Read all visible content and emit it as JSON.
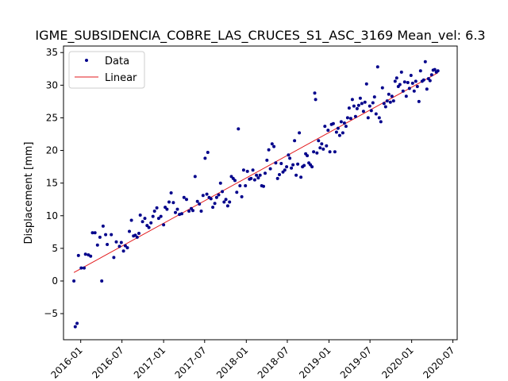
{
  "chart_data": {
    "type": "scatter",
    "title": "IGME_SUBSIDENCIA_COBRE_LAS_CRUCES_S1_ASC_3169     Mean_vel: 6.3",
    "xlabel": "",
    "ylabel": "Displacement [mm]",
    "xlim": [
      "2015-10-17",
      "2020-07-20"
    ],
    "ylim": [
      -9,
      36
    ],
    "x_ticks": [
      "2016-01",
      "2016-07",
      "2017-01",
      "2017-07",
      "2018-01",
      "2018-07",
      "2019-01",
      "2019-07",
      "2020-01",
      "2020-07"
    ],
    "y_ticks": [
      -5,
      0,
      5,
      10,
      15,
      20,
      25,
      30,
      35
    ],
    "grid": false,
    "legend_position": "upper-left",
    "colors": {
      "data": "#00008b",
      "linear": "#e31a1c"
    },
    "series": [
      {
        "name": "Data",
        "style": "markers",
        "points": [
          [
            "2015-12-02",
            0
          ],
          [
            "2015-12-08",
            -7
          ],
          [
            "2015-12-16",
            -6.5
          ],
          [
            "2015-12-22",
            3.9
          ],
          [
            "2016-01-03",
            2
          ],
          [
            "2016-01-16",
            2
          ],
          [
            "2016-01-22",
            4.1
          ],
          [
            "2016-02-04",
            4
          ],
          [
            "2016-02-14",
            3.8
          ],
          [
            "2016-02-22",
            7.4
          ],
          [
            "2016-03-04",
            7.4
          ],
          [
            "2016-03-15",
            5.5
          ],
          [
            "2016-03-26",
            6.7
          ],
          [
            "2016-04-03",
            0
          ],
          [
            "2016-04-09",
            8.4
          ],
          [
            "2016-04-20",
            7.1
          ],
          [
            "2016-04-27",
            5.6
          ],
          [
            "2016-05-15",
            7.1
          ],
          [
            "2016-05-26",
            3.6
          ],
          [
            "2016-06-06",
            6
          ],
          [
            "2016-06-20",
            5.3
          ],
          [
            "2016-06-28",
            5.9
          ],
          [
            "2016-07-08",
            4.6
          ],
          [
            "2016-07-16",
            5.4
          ],
          [
            "2016-07-25",
            5.1
          ],
          [
            "2016-08-03",
            7.6
          ],
          [
            "2016-08-12",
            9.3
          ],
          [
            "2016-08-21",
            6.9
          ],
          [
            "2016-08-29",
            7
          ],
          [
            "2016-09-06",
            6.7
          ],
          [
            "2016-09-14",
            7.3
          ],
          [
            "2016-09-20",
            10.1
          ],
          [
            "2016-09-30",
            9.1
          ],
          [
            "2016-10-10",
            9.6
          ],
          [
            "2016-10-20",
            8.5
          ],
          [
            "2016-10-28",
            8.2
          ],
          [
            "2016-11-06",
            8.9
          ],
          [
            "2016-11-15",
            9.9
          ],
          [
            "2016-11-22",
            10.7
          ],
          [
            "2016-12-02",
            11.2
          ],
          [
            "2016-12-10",
            9.6
          ],
          [
            "2016-12-20",
            9.9
          ],
          [
            "2017-01-01",
            8.6
          ],
          [
            "2017-01-08",
            11.3
          ],
          [
            "2017-01-16",
            11
          ],
          [
            "2017-01-25",
            12.1
          ],
          [
            "2017-02-03",
            13.5
          ],
          [
            "2017-02-13",
            12
          ],
          [
            "2017-02-22",
            10.5
          ],
          [
            "2017-03-03",
            11
          ],
          [
            "2017-03-12",
            10.2
          ],
          [
            "2017-03-22",
            10.3
          ],
          [
            "2017-04-01",
            12.8
          ],
          [
            "2017-04-12",
            12.5
          ],
          [
            "2017-04-23",
            10.7
          ],
          [
            "2017-05-03",
            11.1
          ],
          [
            "2017-05-10",
            10.8
          ],
          [
            "2017-05-20",
            16
          ],
          [
            "2017-05-30",
            12.2
          ],
          [
            "2017-06-08",
            11.8
          ],
          [
            "2017-06-16",
            10.7
          ],
          [
            "2017-06-24",
            13.1
          ],
          [
            "2017-07-03",
            18.8
          ],
          [
            "2017-07-11",
            13.3
          ],
          [
            "2017-07-15",
            19.7
          ],
          [
            "2017-07-21",
            12.8
          ],
          [
            "2017-07-29",
            12.6
          ],
          [
            "2017-08-06",
            11.3
          ],
          [
            "2017-08-15",
            11.9
          ],
          [
            "2017-08-23",
            12.8
          ],
          [
            "2017-09-01",
            13.2
          ],
          [
            "2017-09-09",
            15
          ],
          [
            "2017-09-17",
            13.7
          ],
          [
            "2017-09-25",
            12.1
          ],
          [
            "2017-10-03",
            12.5
          ],
          [
            "2017-10-11",
            11.5
          ],
          [
            "2017-10-19",
            12.1
          ],
          [
            "2017-10-27",
            16
          ],
          [
            "2017-11-04",
            15.7
          ],
          [
            "2017-11-12",
            15.4
          ],
          [
            "2017-11-20",
            13.6
          ],
          [
            "2017-11-27",
            23.3
          ],
          [
            "2017-12-04",
            14.6
          ],
          [
            "2017-12-12",
            12.9
          ],
          [
            "2017-12-20",
            17
          ],
          [
            "2017-12-28",
            14.6
          ],
          [
            "2018-01-06",
            16.8
          ],
          [
            "2018-01-15",
            15.6
          ],
          [
            "2018-01-22",
            15.7
          ],
          [
            "2018-01-30",
            17
          ],
          [
            "2018-02-07",
            15.5
          ],
          [
            "2018-02-15",
            16.2
          ],
          [
            "2018-02-23",
            15.8
          ],
          [
            "2018-03-03",
            16.2
          ],
          [
            "2018-03-10",
            14.6
          ],
          [
            "2018-03-18",
            14.5
          ],
          [
            "2018-03-25",
            16.5
          ],
          [
            "2018-04-02",
            18.5
          ],
          [
            "2018-04-10",
            20.1
          ],
          [
            "2018-04-17",
            17.2
          ],
          [
            "2018-04-25",
            21
          ],
          [
            "2018-05-03",
            20.6
          ],
          [
            "2018-05-11",
            18.1
          ],
          [
            "2018-05-19",
            15.7
          ],
          [
            "2018-05-27",
            16.3
          ],
          [
            "2018-06-04",
            18
          ],
          [
            "2018-06-12",
            16.7
          ],
          [
            "2018-06-20",
            17
          ],
          [
            "2018-06-28",
            17.5
          ],
          [
            "2018-07-06",
            19.3
          ],
          [
            "2018-07-12",
            18.8
          ],
          [
            "2018-07-19",
            17.3
          ],
          [
            "2018-07-26",
            17.8
          ],
          [
            "2018-08-02",
            21.5
          ],
          [
            "2018-08-09",
            16.2
          ],
          [
            "2018-08-16",
            17.9
          ],
          [
            "2018-08-23",
            22.7
          ],
          [
            "2018-08-30",
            15.9
          ],
          [
            "2018-09-06",
            17.5
          ],
          [
            "2018-09-13",
            17.7
          ],
          [
            "2018-09-20",
            19.5
          ],
          [
            "2018-09-27",
            19.2
          ],
          [
            "2018-10-04",
            18.1
          ],
          [
            "2018-10-11",
            17.8
          ],
          [
            "2018-10-18",
            17.5
          ],
          [
            "2018-10-25",
            19.8
          ],
          [
            "2018-10-30",
            28.8
          ],
          [
            "2018-11-03",
            27.8
          ],
          [
            "2018-11-09",
            19.6
          ],
          [
            "2018-11-16",
            21.5
          ],
          [
            "2018-11-23",
            20.4
          ],
          [
            "2018-11-30",
            21
          ],
          [
            "2018-12-07",
            20.2
          ],
          [
            "2018-12-14",
            23.7
          ],
          [
            "2018-12-21",
            20.7
          ],
          [
            "2018-12-28",
            23.1
          ],
          [
            "2019-01-05",
            19.8
          ],
          [
            "2019-01-12",
            24
          ],
          [
            "2019-01-20",
            24.1
          ],
          [
            "2019-01-27",
            19.8
          ],
          [
            "2019-02-03",
            22.8
          ],
          [
            "2019-02-10",
            23.4
          ],
          [
            "2019-02-17",
            22.3
          ],
          [
            "2019-02-24",
            24.4
          ],
          [
            "2019-03-03",
            22.7
          ],
          [
            "2019-03-10",
            24.2
          ],
          [
            "2019-03-17",
            23.7
          ],
          [
            "2019-03-24",
            25
          ],
          [
            "2019-03-31",
            26.5
          ],
          [
            "2019-04-07",
            24.9
          ],
          [
            "2019-04-14",
            27.8
          ],
          [
            "2019-04-21",
            26.8
          ],
          [
            "2019-04-28",
            25.2
          ],
          [
            "2019-05-05",
            26.4
          ],
          [
            "2019-05-12",
            26.9
          ],
          [
            "2019-05-19",
            28
          ],
          [
            "2019-05-26",
            27.2
          ],
          [
            "2019-06-02",
            26
          ],
          [
            "2019-06-09",
            27.4
          ],
          [
            "2019-06-16",
            30.2
          ],
          [
            "2019-06-23",
            25
          ],
          [
            "2019-06-30",
            26.8
          ],
          [
            "2019-07-07",
            26.1
          ],
          [
            "2019-07-14",
            27.3
          ],
          [
            "2019-07-21",
            28.2
          ],
          [
            "2019-07-28",
            25.6
          ],
          [
            "2019-08-04",
            32.8
          ],
          [
            "2019-08-11",
            25
          ],
          [
            "2019-08-18",
            24.4
          ],
          [
            "2019-08-25",
            29.6
          ],
          [
            "2019-09-01",
            27.2
          ],
          [
            "2019-09-08",
            26.7
          ],
          [
            "2019-09-15",
            27.6
          ],
          [
            "2019-09-22",
            28.6
          ],
          [
            "2019-09-29",
            27.4
          ],
          [
            "2019-10-06",
            28.3
          ],
          [
            "2019-10-13",
            27.6
          ],
          [
            "2019-10-20",
            30.6
          ],
          [
            "2019-10-27",
            31.1
          ],
          [
            "2019-11-03",
            29.8
          ],
          [
            "2019-11-10",
            30.1
          ],
          [
            "2019-11-17",
            32
          ],
          [
            "2019-11-24",
            29.1
          ],
          [
            "2019-12-01",
            30.5
          ],
          [
            "2019-12-08",
            28.3
          ],
          [
            "2019-12-15",
            30.4
          ],
          [
            "2019-12-22",
            29.5
          ],
          [
            "2019-12-29",
            31.5
          ],
          [
            "2020-01-05",
            30.3
          ],
          [
            "2020-01-12",
            29.1
          ],
          [
            "2020-01-19",
            30.6
          ],
          [
            "2020-01-26",
            29.8
          ],
          [
            "2020-02-02",
            27.5
          ],
          [
            "2020-02-09",
            32.2
          ],
          [
            "2020-02-16",
            30.6
          ],
          [
            "2020-02-23",
            30.8
          ],
          [
            "2020-03-01",
            33.6
          ],
          [
            "2020-03-08",
            29.4
          ],
          [
            "2020-03-15",
            31
          ],
          [
            "2020-03-22",
            30.7
          ],
          [
            "2020-03-29",
            31.6
          ],
          [
            "2020-04-05",
            32.3
          ],
          [
            "2020-04-12",
            32.4
          ],
          [
            "2020-04-19",
            32
          ],
          [
            "2020-04-26",
            32.2
          ]
        ]
      },
      {
        "name": "Linear",
        "style": "line",
        "points": [
          [
            "2015-12-02",
            1.3
          ],
          [
            "2020-04-26",
            31.9
          ]
        ]
      }
    ]
  }
}
